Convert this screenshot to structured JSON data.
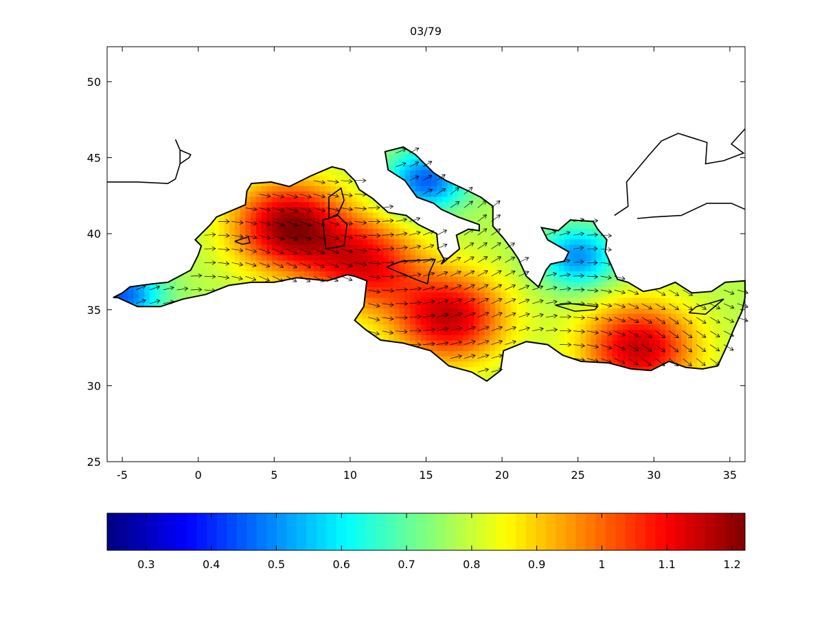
{
  "chart_data": {
    "type": "heatmap",
    "title": "03/79",
    "xlabel": "",
    "ylabel": "",
    "xlim": [
      -6,
      36
    ],
    "ylim": [
      25,
      52.3
    ],
    "x_ticks": [
      -5,
      0,
      5,
      10,
      15,
      20,
      25,
      30,
      35
    ],
    "y_ticks": [
      25,
      30,
      35,
      40,
      45,
      50
    ],
    "grid": false,
    "colormap": "jet",
    "colorbar": {
      "orientation": "horizontal",
      "placement": "bottom",
      "range": [
        0.24,
        1.22
      ],
      "ticks": [
        "0.3",
        "0.4",
        "0.5",
        "0.6",
        "0.7",
        "0.8",
        "0.9",
        "1",
        "1.1",
        "1.2"
      ]
    },
    "field_maxima": [
      {
        "lon": 6,
        "lat": 40.5,
        "value": 1.2
      },
      {
        "lon": 11,
        "lat": 38,
        "value": 1.1
      },
      {
        "lon": 16.5,
        "lat": 34.5,
        "value": 1.15
      },
      {
        "lon": 29,
        "lat": 32.5,
        "value": 1.15
      }
    ],
    "field_minima": [
      {
        "lon": 15,
        "lat": 43.5,
        "value": 0.45
      },
      {
        "lon": 25,
        "lat": 38.5,
        "value": 0.5
      },
      {
        "lon": -5,
        "lat": 36,
        "value": 0.45
      }
    ],
    "overlay": "wind vector arrows, coastlines"
  }
}
